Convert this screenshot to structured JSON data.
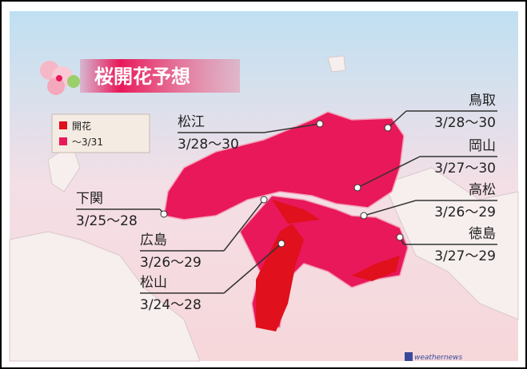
{
  "title": "桜開花予想",
  "legend": [
    {
      "label": "開花",
      "color": "#e0101c"
    },
    {
      "label": "～3/31",
      "color": "#e8185a"
    }
  ],
  "cities": [
    {
      "name": "鳥取",
      "date": "3/28～30"
    },
    {
      "name": "岡山",
      "date": "3/27～30"
    },
    {
      "name": "高松",
      "date": "3/26～29"
    },
    {
      "name": "徳島",
      "date": "3/27～29"
    },
    {
      "name": "松江",
      "date": "3/28～30"
    },
    {
      "name": "下関",
      "date": "3/25～28"
    },
    {
      "name": "広島",
      "date": "3/26～29"
    },
    {
      "name": "松山",
      "date": "3/24～28"
    }
  ],
  "logo": "weathernews"
}
